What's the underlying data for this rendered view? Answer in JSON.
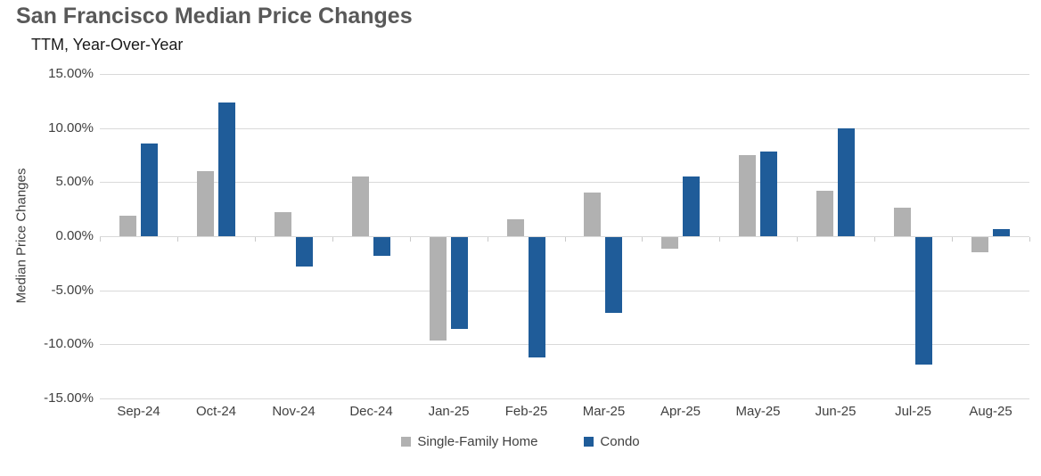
{
  "header": {
    "title": "San Francisco Median Price Changes",
    "subtitle": "TTM, Year-Over-Year"
  },
  "chart_data": {
    "type": "bar",
    "title": "San Francisco Median Price Changes",
    "subtitle": "TTM, Year-Over-Year",
    "xlabel": "",
    "ylabel": "Median Price Changes",
    "categories": [
      "Sep-24",
      "Oct-24",
      "Nov-24",
      "Dec-24",
      "Jan-25",
      "Feb-25",
      "Mar-25",
      "Apr-25",
      "May-25",
      "Jun-25",
      "Jul-25",
      "Aug-25"
    ],
    "series": [
      {
        "name": "Single-Family Home",
        "color": "#B1B1B1",
        "values": [
          1.9,
          6.0,
          2.2,
          5.5,
          -9.6,
          1.6,
          4.0,
          -1.1,
          7.5,
          4.2,
          2.6,
          -1.4
        ]
      },
      {
        "name": "Condo",
        "color": "#1F5C99",
        "values": [
          8.6,
          12.4,
          -2.7,
          -1.7,
          -8.5,
          -11.1,
          -7.0,
          5.5,
          7.8,
          10.0,
          -11.8,
          0.7
        ]
      }
    ],
    "ylim": [
      -15,
      15
    ],
    "ytick_step": 5,
    "ytick_labels": [
      "15.00%",
      "10.00%",
      "5.00%",
      "0.00%",
      "-5.00%",
      "-10.00%",
      "-15.00%"
    ],
    "grid": true,
    "legend_position": "bottom-center",
    "colors": {
      "gridline": "#D9D9D9",
      "axis_text": "#404040",
      "title_text": "#595959"
    }
  }
}
